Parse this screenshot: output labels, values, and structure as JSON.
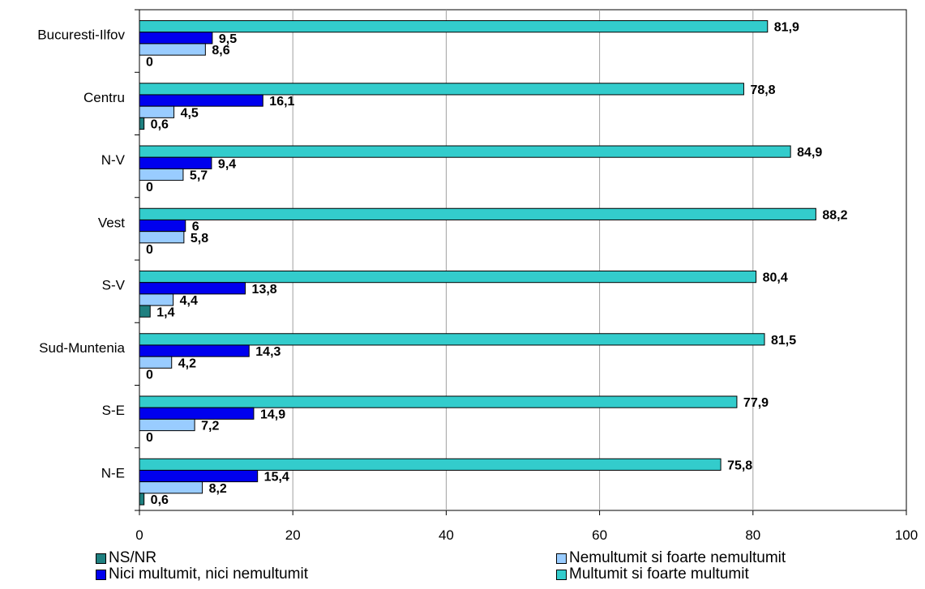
{
  "chart_data": {
    "type": "bar",
    "orientation": "horizontal",
    "categories": [
      "Bucuresti-Ilfov",
      "Centru",
      "N-V",
      "Vest",
      "S-V",
      "Sud-Muntenia",
      "S-E",
      "N-E"
    ],
    "series": [
      {
        "name": "NS/NR",
        "color": "#1F8080",
        "values": [
          0,
          0.6,
          0,
          0,
          1.4,
          0,
          0,
          0.6
        ],
        "labels": [
          "0",
          "0,6",
          "0",
          "0",
          "1,4",
          "0",
          "0",
          "0,6"
        ]
      },
      {
        "name": "Nemultumit si foarte nemultumit",
        "color": "#99CCFF",
        "values": [
          8.6,
          4.5,
          5.7,
          5.8,
          4.4,
          4.2,
          7.2,
          8.2
        ],
        "labels": [
          "8,6",
          "4,5",
          "5,7",
          "5,8",
          "4,4",
          "4,2",
          "7,2",
          "8,2"
        ]
      },
      {
        "name": "Nici multumit, nici nemultumit",
        "color": "#0000EE",
        "values": [
          9.5,
          16.1,
          9.4,
          6,
          13.8,
          14.3,
          14.9,
          15.4
        ],
        "labels": [
          "9,5",
          "16,1",
          "9,4",
          "6",
          "13,8",
          "14,3",
          "14,9",
          "15,4"
        ]
      },
      {
        "name": "Multumit si foarte multumit",
        "color": "#33CCCC",
        "values": [
          81.9,
          78.8,
          84.9,
          88.2,
          80.4,
          81.5,
          77.9,
          75.8
        ],
        "labels": [
          "81,9",
          "78,8",
          "84,9",
          "88,2",
          "80,4",
          "81,5",
          "77,9",
          "75,8"
        ]
      }
    ],
    "xlim": [
      0,
      100
    ],
    "xticks": [
      "0",
      "20",
      "40",
      "60",
      "80",
      "100"
    ],
    "grid": true,
    "legend_position": "bottom"
  },
  "legend": {
    "items": [
      {
        "label": "NS/NR",
        "color": "#1F8080"
      },
      {
        "label": "Nici multumit, nici nemultumit",
        "color": "#0000EE"
      },
      {
        "label": "Nemultumit si foarte nemultumit",
        "color": "#99CCFF"
      },
      {
        "label": "Multumit si foarte multumit",
        "color": "#33CCCC"
      }
    ]
  }
}
